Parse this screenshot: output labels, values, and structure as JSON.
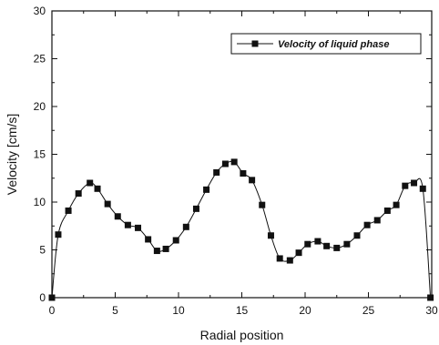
{
  "chart_data": {
    "type": "line",
    "title": "",
    "xlabel": "Radial position",
    "ylabel": "Velocity  [cm/s]",
    "xlim": [
      0,
      30
    ],
    "ylim": [
      0,
      30
    ],
    "xticks": [
      "0",
      "5",
      "10",
      "15",
      "20",
      "25",
      "30"
    ],
    "yticks": [
      "0",
      "5",
      "10",
      "15",
      "20",
      "25",
      "30"
    ],
    "grid": false,
    "legend_position": "top-right",
    "line_color": "#111111",
    "series": [
      {
        "name": "Velocity of liquid phase",
        "x": [
          0,
          0.5,
          1.3,
          2.1,
          3.0,
          3.6,
          4.4,
          5.2,
          6.0,
          6.8,
          7.6,
          8.3,
          9.0,
          9.8,
          10.6,
          11.4,
          12.2,
          13.0,
          13.7,
          14.4,
          15.1,
          15.8,
          16.6,
          17.3,
          18.0,
          18.8,
          19.5,
          20.2,
          21.0,
          21.7,
          22.5,
          23.3,
          24.1,
          24.9,
          25.7,
          26.5,
          27.2,
          27.9,
          28.6,
          29.3,
          29.9
        ],
        "y": [
          0,
          6.6,
          9.1,
          10.9,
          12.0,
          11.4,
          9.8,
          8.5,
          7.6,
          7.3,
          6.1,
          4.9,
          5.1,
          6.0,
          7.4,
          9.3,
          11.3,
          13.1,
          14.0,
          14.2,
          13.0,
          12.3,
          9.7,
          6.5,
          4.1,
          3.9,
          4.7,
          5.6,
          5.9,
          5.4,
          5.2,
          5.6,
          6.5,
          7.6,
          8.1,
          9.1,
          9.7,
          11.7,
          12.0,
          11.4,
          0
        ]
      }
    ]
  }
}
